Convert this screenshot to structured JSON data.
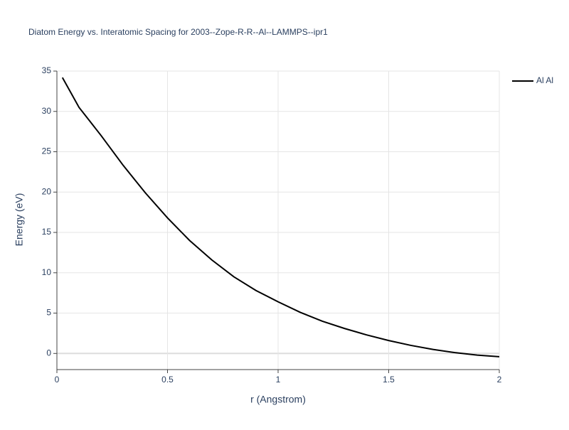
{
  "chart_data": {
    "type": "line",
    "title": "Diatom Energy vs. Interatomic Spacing for 2003--Zope-R-R--Al--LAMMPS--ipr1",
    "x_label": "r (Angstrom)",
    "y_label": "Energy (eV)",
    "x": [
      0.025,
      0.1,
      0.2,
      0.3,
      0.4,
      0.5,
      0.6,
      0.7,
      0.8,
      0.9,
      1.0,
      1.1,
      1.2,
      1.3,
      1.4,
      1.5,
      1.6,
      1.7,
      1.8,
      1.9,
      2.0
    ],
    "series": [
      {
        "name": "Al Al",
        "color": "#000000",
        "values": [
          34.2,
          30.5,
          27.0,
          23.3,
          19.9,
          16.8,
          14.0,
          11.6,
          9.5,
          7.8,
          6.4,
          5.1,
          4.0,
          3.1,
          2.3,
          1.6,
          1.0,
          0.5,
          0.1,
          -0.2,
          -0.4
        ]
      }
    ],
    "xlim": [
      0,
      2
    ],
    "xticks": [
      0,
      0.5,
      1,
      1.5,
      2
    ],
    "ylim": [
      -2,
      35
    ],
    "yticks": [
      0,
      5,
      10,
      15,
      20,
      25,
      30,
      35
    ],
    "grid": true,
    "legend": "top-right"
  }
}
